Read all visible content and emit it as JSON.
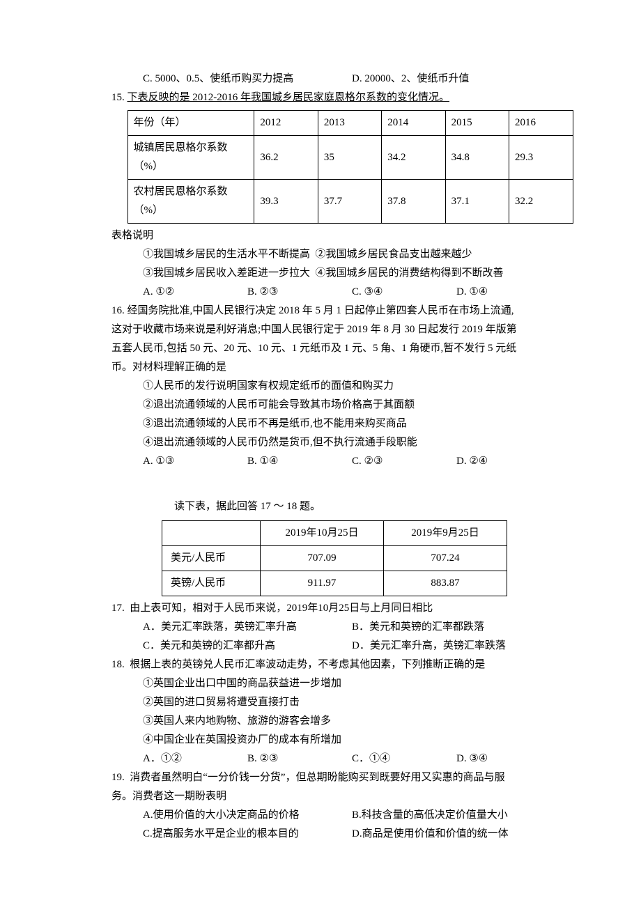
{
  "q14_opts": {
    "c": "C. 5000、0.5、使纸币购买力提高",
    "d": "D. 20000、2、使纸币升值"
  },
  "q15": {
    "stem": "15. ",
    "stem_underlined": "下表反映的是 2012-2016 年我国城乡居民家庭恩格尔系数的变化情况。",
    "table": {
      "header": [
        "年份（年）",
        "2012",
        "2013",
        "2014",
        "2015",
        "2016"
      ],
      "row1": [
        "城镇居民恩格尔系数（%）",
        "36.2",
        "35",
        "34.2",
        "34.8",
        "29.3"
      ],
      "row2": [
        "农村居民恩格尔系数（%）",
        "39.3",
        "37.7",
        "37.8",
        "37.1",
        "32.2"
      ]
    },
    "after": "表格说明",
    "s1": "①我国城乡居民的生活水平不断提高  ②我国城乡居民食品支出越来越少",
    "s2": "③我国城乡居民收入差距进一步拉大  ④我国城乡居民的消费结构得到不断改善",
    "opts": {
      "a": "A. ①②",
      "b": "B. ②③",
      "c": "C. ③④",
      "d": "D. ①④"
    }
  },
  "q16": {
    "l1": "16. 经国务院批准,中国人民银行决定 2018 年 5 月 1 日起停止第四套人民币在市场上流通,",
    "l2": "这对于收藏市场来说是利好消息;中国人民银行定于 2019 年 8 月 30 日起发行 2019 年版第",
    "l3": "五套人民币,包括 50 元、20 元、10 元、1 元纸币及 1 元、5 角、1 角硬币,暂不发行 5 元纸",
    "l4": "币。对材料理解正确的是",
    "s1": "①人民币的发行说明国家有权规定纸币的面值和购买力",
    "s2": "②退出流通领域的人民币可能会导致其市场价格高于其面额",
    "s3": "③退出流通领域的人民币不再是纸币,也不能用来购买商品",
    "s4": "④退出流通领域的人民币仍然是货币,但不执行流通手段职能",
    "opts": {
      "a": "A.  ①③",
      "b": "B. ①④",
      "c": "C. ②③",
      "d": "D. ②④"
    }
  },
  "intro1718": "读下表，据此回答 17 ～ 18 题。",
  "table2": {
    "header": [
      "",
      "2019年10月25日",
      "2019年9月25日"
    ],
    "row1": [
      "美元/人民币",
      "707.09",
      "707.24"
    ],
    "row2": [
      "英镑/人民币",
      "911.97",
      "883.87"
    ]
  },
  "q17": {
    "stem": "17.  由上表可知，相对于人民币来说，2019年10月25日与上月同日相比",
    "a": "A．美元汇率跌落，英镑汇率升高",
    "b": "B．美元和英镑的汇率都跌落",
    "c": "C．美元和英镑的汇率都升高",
    "d": "D．美元汇率升高，英镑汇率跌落"
  },
  "q18": {
    "stem": "18.  根据上表的英镑兑人民币汇率波动走势，不考虑其他因素，下列推断正确的是",
    "s1": "①英国企业出口中国的商品获益进一步增加",
    "s2": "②英国的进口贸易将遭受直接打击",
    "s3": "③英国人来内地购物、旅游的游客会增多",
    "s4": "④中国企业在英国投资办厂的成本有所增加",
    "opts": {
      "a": "A．①②",
      "b": "B. ②③",
      "c": "C．①④",
      "d": "D. ③④"
    }
  },
  "q19": {
    "l1": "19.  消费者虽然明白“一分价钱一分货”，但总期盼能购买到既要好用又实惠的商品与服",
    "l2": "务。消费者这一期盼表明",
    "a": "A.使用价值的大小决定商品的价格",
    "b": "B.科技含量的高低决定价值量大小",
    "c": "C.提高服务水平是企业的根本目的",
    "d": "D.商品是使用价值和价值的统一体"
  }
}
